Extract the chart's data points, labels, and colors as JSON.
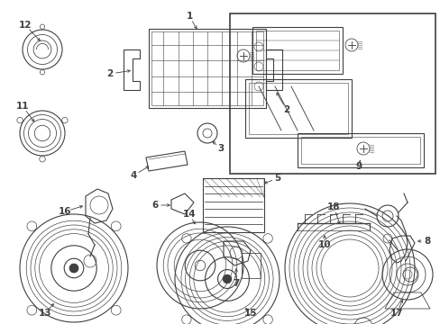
{
  "bg_color": "#ffffff",
  "line_color": "#404040",
  "figsize": [
    4.89,
    3.6
  ],
  "dpi": 100
}
